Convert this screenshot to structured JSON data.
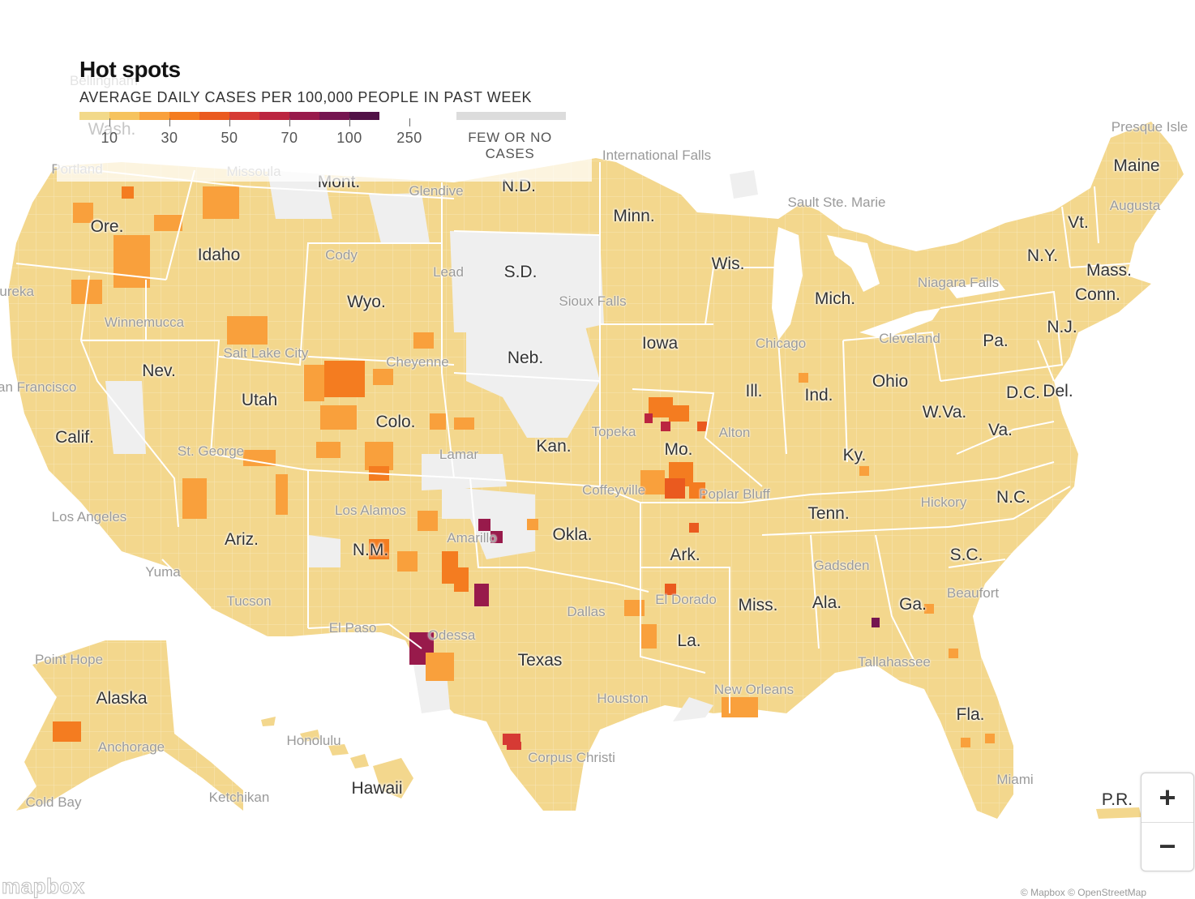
{
  "legend": {
    "title": "Hot spots",
    "subtitle": "AVERAGE DAILY CASES PER 100,000 PEOPLE IN PAST WEEK",
    "ticks": [
      "10",
      "30",
      "50",
      "70",
      "100",
      "250"
    ],
    "colors": [
      "#f2d98a",
      "#f6c35e",
      "#f9a03c",
      "#f47c20",
      "#ea5a1f",
      "#d63a34",
      "#bb2540",
      "#981a4b",
      "#751550",
      "#511146"
    ],
    "few_label": "FEW OR NO CASES",
    "few_color": "#dcdcdc"
  },
  "map_colors": {
    "land": "#f3d78d",
    "land_alt": "#eecf83",
    "no_cases": "#efefef",
    "water": "#ffffff",
    "state_border": "#ffffff"
  },
  "place_labels": [
    {
      "id": "washington",
      "text": "Wash."
    },
    {
      "id": "oregon",
      "text": "Ore."
    },
    {
      "id": "idaho",
      "text": "Idaho"
    },
    {
      "id": "montana",
      "text": "Mont."
    },
    {
      "id": "nd",
      "text": "N.D."
    },
    {
      "id": "minnesota",
      "text": "Minn."
    },
    {
      "id": "sd",
      "text": "S.D."
    },
    {
      "id": "wyoming",
      "text": "Wyo."
    },
    {
      "id": "wisconsin",
      "text": "Wis."
    },
    {
      "id": "michigan",
      "text": "Mich."
    },
    {
      "id": "nebraska",
      "text": "Neb."
    },
    {
      "id": "iowa",
      "text": "Iowa"
    },
    {
      "id": "nevada",
      "text": "Nev."
    },
    {
      "id": "utah",
      "text": "Utah"
    },
    {
      "id": "colorado",
      "text": "Colo."
    },
    {
      "id": "california",
      "text": "Calif."
    },
    {
      "id": "kansas",
      "text": "Kan."
    },
    {
      "id": "missouri",
      "text": "Mo."
    },
    {
      "id": "illinois",
      "text": "Ill."
    },
    {
      "id": "indiana",
      "text": "Ind."
    },
    {
      "id": "ohio",
      "text": "Ohio"
    },
    {
      "id": "pennsylvania",
      "text": "Pa."
    },
    {
      "id": "ny",
      "text": "N.Y."
    },
    {
      "id": "vermont",
      "text": "Vt."
    },
    {
      "id": "maine",
      "text": "Maine"
    },
    {
      "id": "mass",
      "text": "Mass."
    },
    {
      "id": "conn",
      "text": "Conn."
    },
    {
      "id": "nj",
      "text": "N.J."
    },
    {
      "id": "dc",
      "text": "D.C."
    },
    {
      "id": "delaware",
      "text": "Del."
    },
    {
      "id": "wva",
      "text": "W.Va."
    },
    {
      "id": "virginia",
      "text": "Va."
    },
    {
      "id": "kentucky",
      "text": "Ky."
    },
    {
      "id": "tennessee",
      "text": "Tenn."
    },
    {
      "id": "nc",
      "text": "N.C."
    },
    {
      "id": "sc",
      "text": "S.C."
    },
    {
      "id": "georgia",
      "text": "Ga."
    },
    {
      "id": "alabama",
      "text": "Ala."
    },
    {
      "id": "mississippi",
      "text": "Miss."
    },
    {
      "id": "arkansas",
      "text": "Ark."
    },
    {
      "id": "louisiana",
      "text": "La."
    },
    {
      "id": "oklahoma",
      "text": "Okla."
    },
    {
      "id": "texas",
      "text": "Texas"
    },
    {
      "id": "nm",
      "text": "N.M."
    },
    {
      "id": "arizona",
      "text": "Ariz."
    },
    {
      "id": "florida",
      "text": "Fla."
    },
    {
      "id": "alaska",
      "text": "Alaska"
    },
    {
      "id": "hawaii",
      "text": "Hawaii"
    },
    {
      "id": "pr",
      "text": "P.R."
    }
  ],
  "city_labels": [
    {
      "id": "portland",
      "text": "Portland"
    },
    {
      "id": "missoula",
      "text": "Missoula"
    },
    {
      "id": "glendive",
      "text": "Glendive"
    },
    {
      "id": "intl-falls",
      "text": "International Falls"
    },
    {
      "id": "sault",
      "text": "Sault Ste. Marie"
    },
    {
      "id": "presque",
      "text": "Presque Isle"
    },
    {
      "id": "augusta",
      "text": "Augusta"
    },
    {
      "id": "cody",
      "text": "Cody"
    },
    {
      "id": "lead",
      "text": "Lead"
    },
    {
      "id": "sioux",
      "text": "Sioux Falls"
    },
    {
      "id": "niagara",
      "text": "Niagara Falls"
    },
    {
      "id": "eureka",
      "text": "Eureka"
    },
    {
      "id": "winnemucca",
      "text": "Winnemucca"
    },
    {
      "id": "slc",
      "text": "Salt Lake City"
    },
    {
      "id": "cheyenne",
      "text": "Cheyenne"
    },
    {
      "id": "chicago",
      "text": "Chicago"
    },
    {
      "id": "cleveland",
      "text": "Cleveland"
    },
    {
      "id": "sf",
      "text": "San Francisco"
    },
    {
      "id": "topeka",
      "text": "Topeka"
    },
    {
      "id": "alton",
      "text": "Alton"
    },
    {
      "id": "stgeorge",
      "text": "St. George"
    },
    {
      "id": "lamar",
      "text": "Lamar"
    },
    {
      "id": "coffeyville",
      "text": "Coffeyville"
    },
    {
      "id": "poplar",
      "text": "Poplar Bluff"
    },
    {
      "id": "hickory",
      "text": "Hickory"
    },
    {
      "id": "la",
      "text": "Los Angeles"
    },
    {
      "id": "losalamos",
      "text": "Los Alamos"
    },
    {
      "id": "amarillo",
      "text": "Amarillo"
    },
    {
      "id": "yuma",
      "text": "Yuma"
    },
    {
      "id": "gadsden",
      "text": "Gadsden"
    },
    {
      "id": "beaufort",
      "text": "Beaufort"
    },
    {
      "id": "tucson",
      "text": "Tucson"
    },
    {
      "id": "dallas",
      "text": "Dallas"
    },
    {
      "id": "eldorado",
      "text": "El Dorado"
    },
    {
      "id": "elpaso",
      "text": "El Paso"
    },
    {
      "id": "odessa",
      "text": "Odessa"
    },
    {
      "id": "pointhope",
      "text": "Point Hope"
    },
    {
      "id": "tallahassee",
      "text": "Tallahassee"
    },
    {
      "id": "neworleans",
      "text": "New Orleans"
    },
    {
      "id": "houston",
      "text": "Houston"
    },
    {
      "id": "anchorage",
      "text": "Anchorage"
    },
    {
      "id": "honolulu",
      "text": "Honolulu"
    },
    {
      "id": "corpus",
      "text": "Corpus Christi"
    },
    {
      "id": "miami",
      "text": "Miami"
    },
    {
      "id": "coldbay",
      "text": "Cold Bay"
    },
    {
      "id": "ketchikan",
      "text": "Ketchikan"
    },
    {
      "id": "bellingham",
      "text": "Bellingham"
    }
  ],
  "controls": {
    "zoom_in": "+",
    "zoom_out": "−"
  },
  "attribution": {
    "logo": "mapbox",
    "text": "© Mapbox © OpenStreetMap"
  }
}
